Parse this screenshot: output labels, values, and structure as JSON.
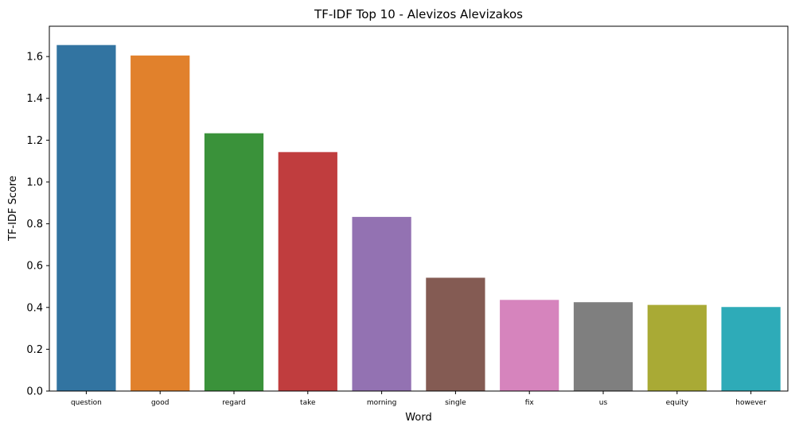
{
  "chart_data": {
    "type": "bar",
    "title": "TF-IDF Top 10 - Alevizos Alevizakos",
    "xlabel": "Word",
    "ylabel": "TF-IDF Score",
    "categories": [
      "question",
      "good",
      "regard",
      "take",
      "morning",
      "single",
      "fix",
      "us",
      "equity",
      "however"
    ],
    "values": [
      1.655,
      1.605,
      1.233,
      1.143,
      0.833,
      0.542,
      0.436,
      0.425,
      0.412,
      0.402
    ],
    "colors": [
      "#3274a1",
      "#e1812c",
      "#3a923a",
      "#c03d3e",
      "#9372b2",
      "#845b53",
      "#d684bd",
      "#7f7f7f",
      "#a9aa35",
      "#2eabb8"
    ],
    "ylim": [
      0,
      1.745
    ],
    "yticks": [
      0.0,
      0.2,
      0.4,
      0.6,
      0.8,
      1.0,
      1.2,
      1.4,
      1.6
    ],
    "ytick_labels": [
      "0.0",
      "0.2",
      "0.4",
      "0.6",
      "0.8",
      "1.0",
      "1.2",
      "1.4",
      "1.6"
    ],
    "grid": false,
    "legend": "none"
  }
}
